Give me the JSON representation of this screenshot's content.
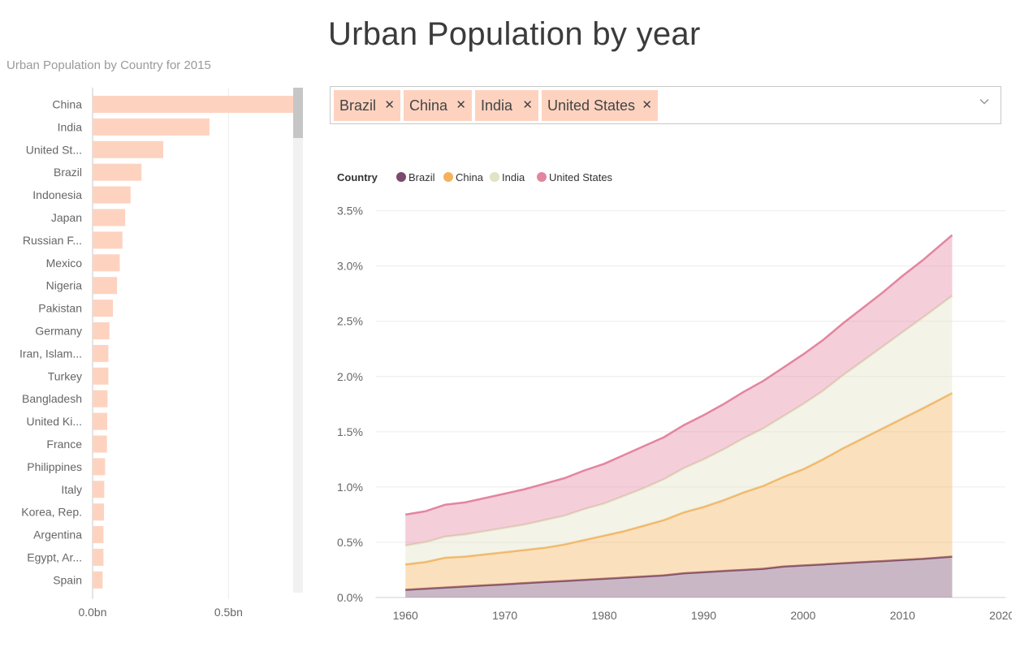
{
  "left_panel": {
    "title": "Urban Population by Country for 2015"
  },
  "main_title": "Urban Population by year",
  "slicer": {
    "chips": [
      {
        "label": "Brazil"
      },
      {
        "label": "China"
      },
      {
        "label": "India"
      },
      {
        "label": "United States"
      }
    ],
    "remove_glyph": "✕",
    "dropdown_icon": "chevron-down-icon"
  },
  "chart_data": [
    {
      "type": "bar",
      "orientation": "horizontal",
      "title": "Urban Population by Country for 2015",
      "categories": [
        "China",
        "India",
        "United St...",
        "Brazil",
        "Indonesia",
        "Japan",
        "Russian F...",
        "Mexico",
        "Nigeria",
        "Pakistan",
        "Germany",
        "Iran, Islam...",
        "Turkey",
        "Bangladesh",
        "United Ki...",
        "France",
        "Philippines",
        "Italy",
        "Korea, Rep.",
        "Argentina",
        "Egypt, Ar...",
        "Spain"
      ],
      "values": [
        0.76,
        0.43,
        0.26,
        0.18,
        0.14,
        0.12,
        0.11,
        0.1,
        0.09,
        0.075,
        0.062,
        0.058,
        0.058,
        0.055,
        0.054,
        0.053,
        0.046,
        0.043,
        0.042,
        0.04,
        0.04,
        0.037
      ],
      "xlim": [
        0,
        0.85
      ],
      "xticks": [
        {
          "value": 0,
          "label": "0.0bn"
        },
        {
          "value": 0.5,
          "label": "0.5bn"
        }
      ],
      "bar_color": "#fdd3c0",
      "grid": true
    },
    {
      "type": "area",
      "stacked": true,
      "legend": {
        "title": "Country",
        "position": "top-left"
      },
      "x": [
        1960,
        1962,
        1964,
        1966,
        1968,
        1970,
        1972,
        1974,
        1976,
        1978,
        1980,
        1982,
        1984,
        1986,
        1988,
        1990,
        1992,
        1994,
        1996,
        1998,
        2000,
        2002,
        2004,
        2006,
        2008,
        2010,
        2012,
        2015
      ],
      "series": [
        {
          "name": "Brazil",
          "color": "#7b4a6f",
          "values": [
            0.07,
            0.08,
            0.09,
            0.1,
            0.11,
            0.12,
            0.13,
            0.14,
            0.15,
            0.16,
            0.17,
            0.18,
            0.19,
            0.2,
            0.22,
            0.23,
            0.24,
            0.25,
            0.26,
            0.28,
            0.29,
            0.3,
            0.31,
            0.32,
            0.33,
            0.34,
            0.35,
            0.37
          ]
        },
        {
          "name": "China",
          "color": "#f6b15b",
          "values": [
            0.23,
            0.24,
            0.27,
            0.27,
            0.28,
            0.29,
            0.3,
            0.31,
            0.33,
            0.36,
            0.39,
            0.42,
            0.46,
            0.5,
            0.55,
            0.59,
            0.64,
            0.7,
            0.75,
            0.81,
            0.87,
            0.95,
            1.04,
            1.12,
            1.2,
            1.28,
            1.36,
            1.48
          ]
        },
        {
          "name": "India",
          "color": "#e2e2c4",
          "values": [
            0.17,
            0.18,
            0.19,
            0.2,
            0.21,
            0.22,
            0.23,
            0.25,
            0.26,
            0.28,
            0.29,
            0.32,
            0.34,
            0.37,
            0.4,
            0.43,
            0.46,
            0.49,
            0.52,
            0.55,
            0.59,
            0.62,
            0.66,
            0.7,
            0.74,
            0.78,
            0.82,
            0.88
          ]
        },
        {
          "name": "United States",
          "color": "#e3859f",
          "values": [
            0.28,
            0.28,
            0.29,
            0.29,
            0.3,
            0.31,
            0.32,
            0.33,
            0.34,
            0.35,
            0.36,
            0.37,
            0.38,
            0.38,
            0.39,
            0.4,
            0.41,
            0.42,
            0.43,
            0.44,
            0.45,
            0.46,
            0.47,
            0.48,
            0.49,
            0.51,
            0.52,
            0.55
          ]
        }
      ],
      "xlim": [
        1957,
        2021
      ],
      "ylim": [
        0,
        3.6
      ],
      "xticks": [
        1960,
        1970,
        1980,
        1990,
        2000,
        2010,
        2020
      ],
      "yticks": [
        {
          "value": 0,
          "label": "0.0%"
        },
        {
          "value": 0.5,
          "label": "0.5%"
        },
        {
          "value": 1.0,
          "label": "1.0%"
        },
        {
          "value": 1.5,
          "label": "1.5%"
        },
        {
          "value": 2.0,
          "label": "2.0%"
        },
        {
          "value": 2.5,
          "label": "2.5%"
        },
        {
          "value": 3.0,
          "label": "3.0%"
        },
        {
          "value": 3.5,
          "label": "3.5%"
        }
      ],
      "grid": true
    }
  ]
}
